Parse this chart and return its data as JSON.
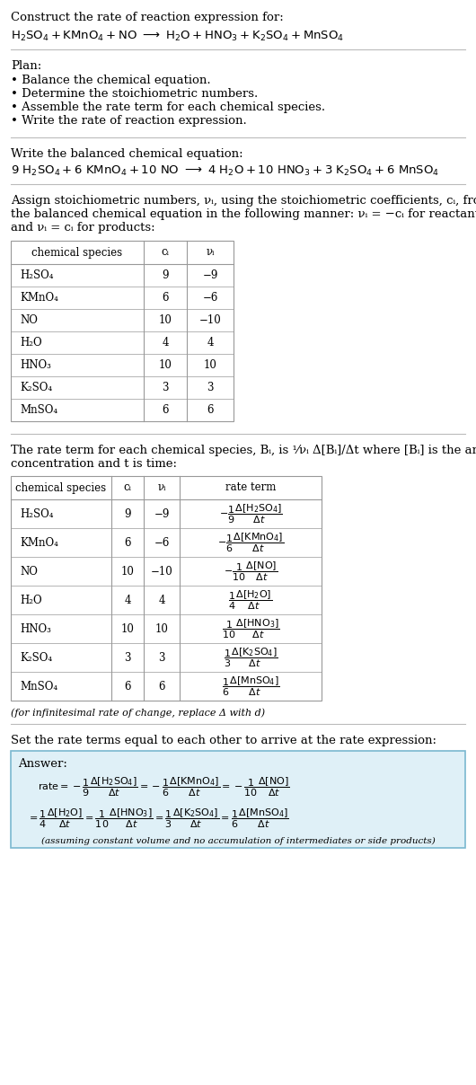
{
  "title_line1": "Construct the rate of reaction expression for:",
  "plan_header": "Plan:",
  "plan_items": [
    "• Balance the chemical equation.",
    "• Determine the stoichiometric numbers.",
    "• Assemble the rate term for each chemical species.",
    "• Write the rate of reaction expression."
  ],
  "balanced_header": "Write the balanced chemical equation:",
  "stoich_intro": [
    "Assign stoichiometric numbers, νᵢ, using the stoichiometric coefficients, cᵢ, from",
    "the balanced chemical equation in the following manner: νᵢ = −cᵢ for reactants",
    "and νᵢ = cᵢ for products:"
  ],
  "table1_headers": [
    "chemical species",
    "cᵢ",
    "νᵢ"
  ],
  "table1_data": [
    [
      "H₂SO₄",
      "9",
      "−9"
    ],
    [
      "KMnO₄",
      "6",
      "−6"
    ],
    [
      "NO",
      "10",
      "−10"
    ],
    [
      "H₂O",
      "4",
      "4"
    ],
    [
      "HNO₃",
      "10",
      "10"
    ],
    [
      "K₂SO₄",
      "3",
      "3"
    ],
    [
      "MnSO₄",
      "6",
      "6"
    ]
  ],
  "rate_term_intro_1": "The rate term for each chemical species, Bᵢ, is ¹⁄νᵢ Δ[Bᵢ]/Δt where [Bᵢ] is the amount",
  "rate_term_intro_2": "concentration and t is time:",
  "table2_headers": [
    "chemical species",
    "cᵢ",
    "νᵢ",
    "rate term"
  ],
  "table2_species": [
    "H₂SO₄",
    "KMnO₄",
    "NO",
    "H₂O",
    "HNO₃",
    "K₂SO₄",
    "MnSO₄"
  ],
  "table2_ci": [
    "9",
    "6",
    "10",
    "4",
    "10",
    "3",
    "6"
  ],
  "table2_ni": [
    "−9",
    "−6",
    "−10",
    "4",
    "10",
    "3",
    "6"
  ],
  "infinitesimal_note": "(for infinitesimal rate of change, replace Δ with d)",
  "set_rate_text": "Set the rate terms equal to each other to arrive at the rate expression:",
  "answer_box_bg": "#dff0f7",
  "answer_label": "Answer:",
  "bg_color": "#ffffff",
  "text_color": "#000000",
  "table_border_color": "#999999",
  "answer_border_color": "#7ab8d0",
  "line_color": "#cccccc"
}
